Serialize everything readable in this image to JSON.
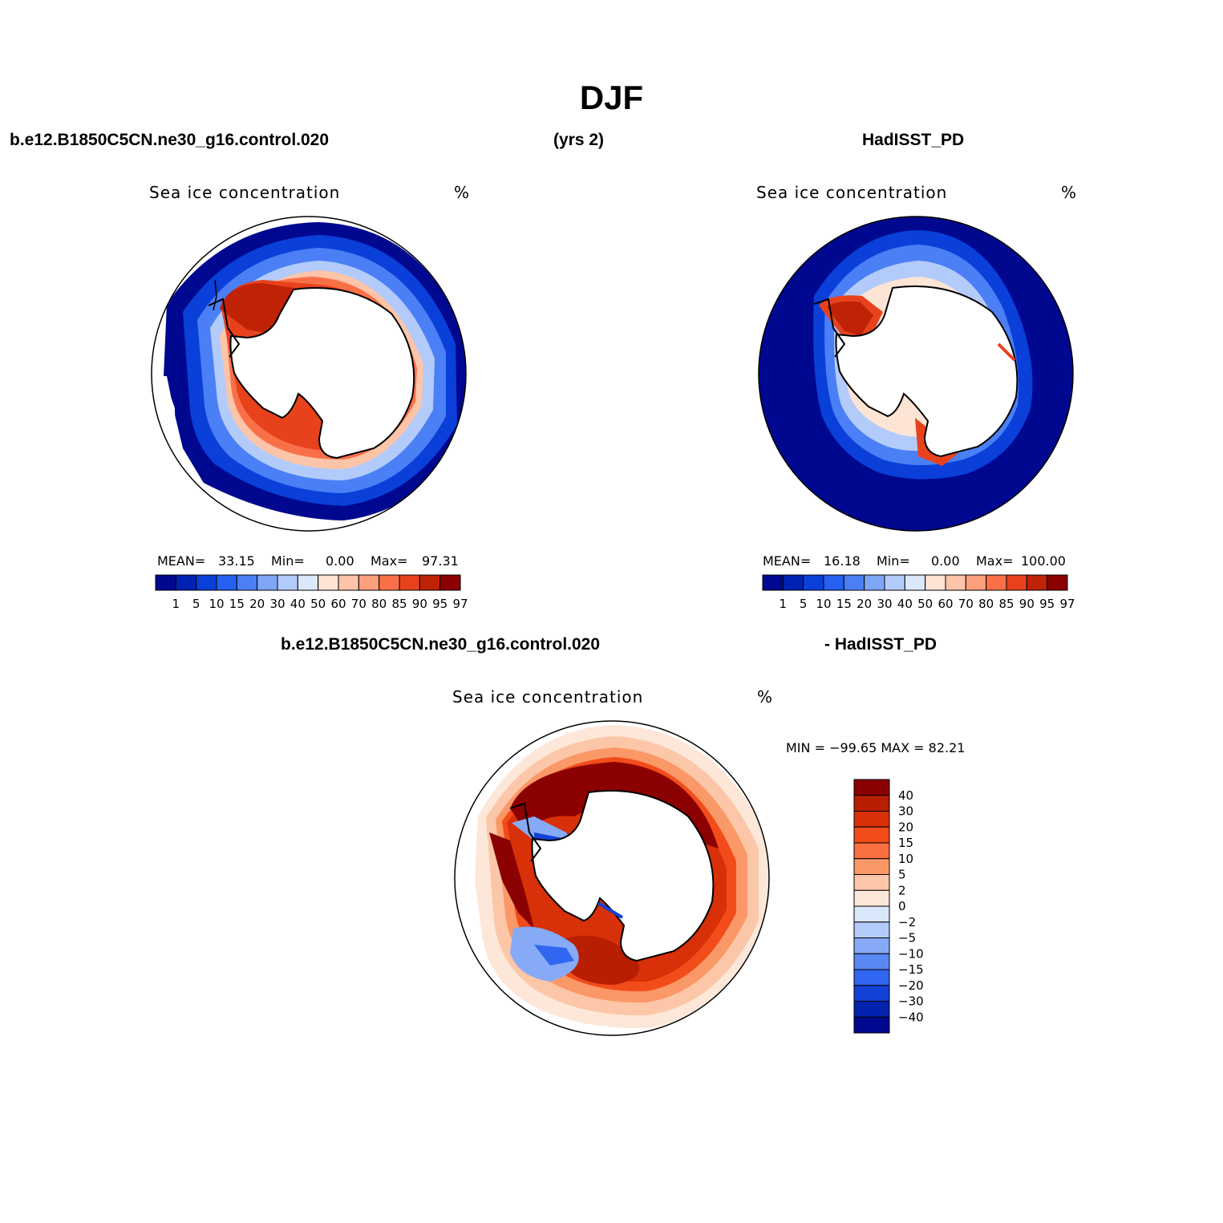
{
  "figure": {
    "title": "DJF",
    "case_name": "b.e12.B1850C5CN.ne30_g16.control.020",
    "years": "(yrs 2)",
    "obs_name": "HadISST_PD",
    "diff_case": "b.e12.B1850C5CN.ne30_g16.control.020",
    "diff_obs": "- HadISST_PD"
  },
  "panels": {
    "model": {
      "variable": "Sea ice concentration",
      "units": "%",
      "mean_label": "MEAN=",
      "mean_value": "33.15",
      "min_label": "Min=",
      "min_value": "0.00",
      "max_label": "Max=",
      "max_value": "97.31"
    },
    "obs": {
      "variable": "Sea ice concentration",
      "units": "%",
      "mean_label": "MEAN=",
      "mean_value": "16.18",
      "min_label": "Min=",
      "min_value": "0.00",
      "max_label": "Max=",
      "max_value": "100.00"
    },
    "diff": {
      "variable": "Sea ice concentration",
      "units": "%",
      "minmax": "MIN = −99.65 MAX =   82.21"
    }
  },
  "chart_data": [
    {
      "type": "heatmap",
      "projection": "south-polar stereographic",
      "title": "Sea ice concentration",
      "units": "%",
      "levels": [
        "1",
        "5",
        "10",
        "15",
        "20",
        "30",
        "40",
        "50",
        "60",
        "70",
        "80",
        "85",
        "90",
        "95",
        "97"
      ],
      "colors": [
        "#00088f",
        "#0022b3",
        "#0a3fd9",
        "#2560f0",
        "#4a7ff5",
        "#7ea6f7",
        "#b3cbfa",
        "#dbe8fc",
        "#fde4d4",
        "#fcc4a8",
        "#fb9f7c",
        "#f97048",
        "#e8421d",
        "#c02206",
        "#8b0000"
      ],
      "stats": {
        "mean": 33.15,
        "min": 0.0,
        "max": 97.31
      }
    },
    {
      "type": "heatmap",
      "projection": "south-polar stereographic",
      "title": "Sea ice concentration",
      "units": "%",
      "levels": [
        "1",
        "5",
        "10",
        "15",
        "20",
        "30",
        "40",
        "50",
        "60",
        "70",
        "80",
        "85",
        "90",
        "95",
        "97"
      ],
      "colors": [
        "#00088f",
        "#0022b3",
        "#0a3fd9",
        "#2560f0",
        "#4a7ff5",
        "#7ea6f7",
        "#b3cbfa",
        "#dbe8fc",
        "#fde4d4",
        "#fcc4a8",
        "#fb9f7c",
        "#f97048",
        "#e8421d",
        "#c02206",
        "#8b0000"
      ],
      "stats": {
        "mean": 16.18,
        "min": 0.0,
        "max": 100.0
      }
    },
    {
      "type": "heatmap",
      "projection": "south-polar stereographic",
      "title": "Sea ice concentration",
      "units": "%",
      "levels": [
        "40",
        "30",
        "20",
        "15",
        "10",
        "5",
        "2",
        "0",
        "−2",
        "−5",
        "−10",
        "−15",
        "−20",
        "−30",
        "−40"
      ],
      "colors": [
        "#8b0000",
        "#b81e02",
        "#d83008",
        "#f24c1a",
        "#f96f3f",
        "#fb9868",
        "#fcc7a8",
        "#fde7d8",
        "#dbe8fc",
        "#b3cbfa",
        "#86aaf6",
        "#5a88f3",
        "#3066f0",
        "#1240d6",
        "#0422b0",
        "#00088f"
      ],
      "stats": {
        "min": -99.65,
        "max": 82.21
      }
    }
  ]
}
